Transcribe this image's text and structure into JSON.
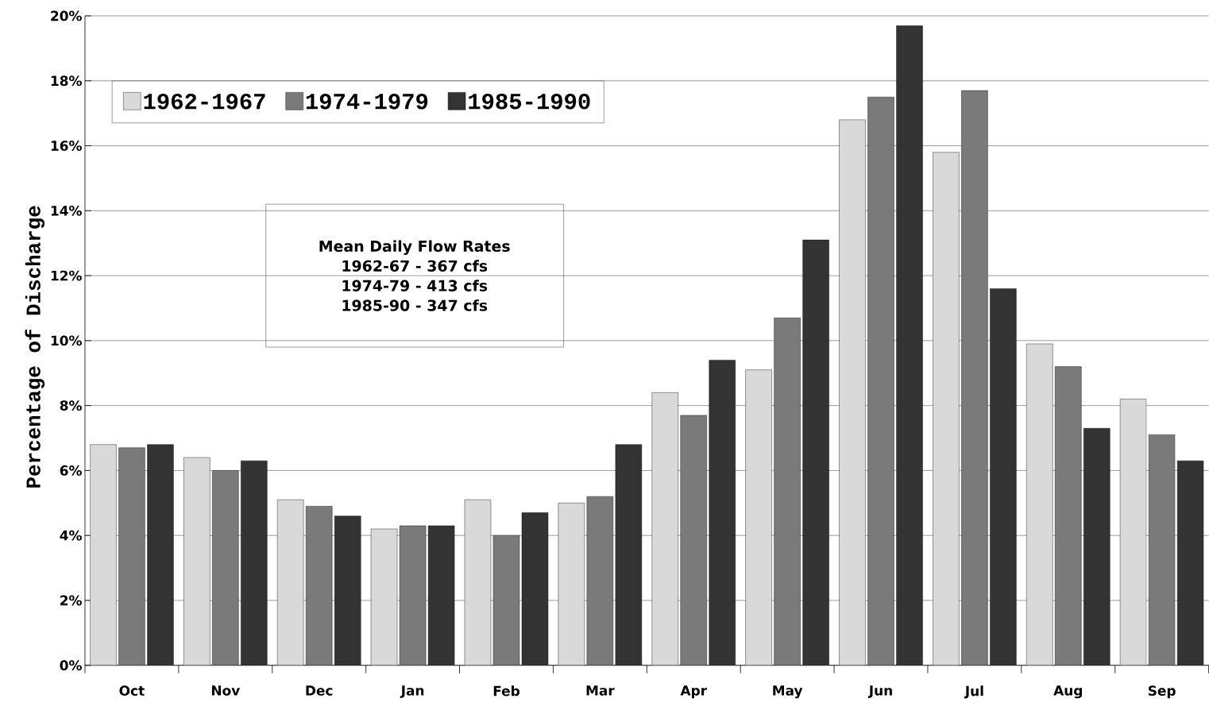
{
  "chart_data": {
    "type": "bar",
    "ylabel": "Percentage of Discharge",
    "categories": [
      "Oct",
      "Nov",
      "Dec",
      "Jan",
      "Feb",
      "Mar",
      "Apr",
      "May",
      "Jun",
      "Jul",
      "Aug",
      "Sep"
    ],
    "series": [
      {
        "name": "1962-1967",
        "color": "#d9d9d9",
        "values": [
          6.8,
          6.4,
          5.1,
          4.2,
          5.1,
          5.0,
          8.4,
          9.1,
          16.8,
          15.8,
          9.9,
          8.2
        ]
      },
      {
        "name": "1974-1979",
        "color": "#7a7a7a",
        "values": [
          6.7,
          6.0,
          4.9,
          4.3,
          4.0,
          5.2,
          7.7,
          10.7,
          17.5,
          17.7,
          9.2,
          7.1
        ]
      },
      {
        "name": "1985-1990",
        "color": "#333333",
        "values": [
          6.8,
          6.3,
          4.6,
          4.3,
          4.7,
          6.8,
          9.4,
          13.1,
          19.7,
          11.6,
          7.3,
          6.3
        ]
      }
    ],
    "ylim": [
      0,
      20
    ],
    "yticks": [
      {
        "value": 0,
        "label": "0%"
      },
      {
        "value": 2,
        "label": "2%"
      },
      {
        "value": 4,
        "label": "4%"
      },
      {
        "value": 6,
        "label": "6%"
      },
      {
        "value": 8,
        "label": "8%"
      },
      {
        "value": 10,
        "label": "10%"
      },
      {
        "value": 12,
        "label": "12%"
      },
      {
        "value": 14,
        "label": "14%"
      },
      {
        "value": 16,
        "label": "16%"
      },
      {
        "value": 18,
        "label": "18%"
      },
      {
        "value": 20,
        "label": "20%"
      }
    ],
    "grid": "y",
    "legend": "top left",
    "annotations": [
      "Mean Daily Flow Rates",
      "1962-67 - 367 cfs",
      "1974-79 - 413 cfs",
      "1985-90 - 347 cfs"
    ]
  }
}
